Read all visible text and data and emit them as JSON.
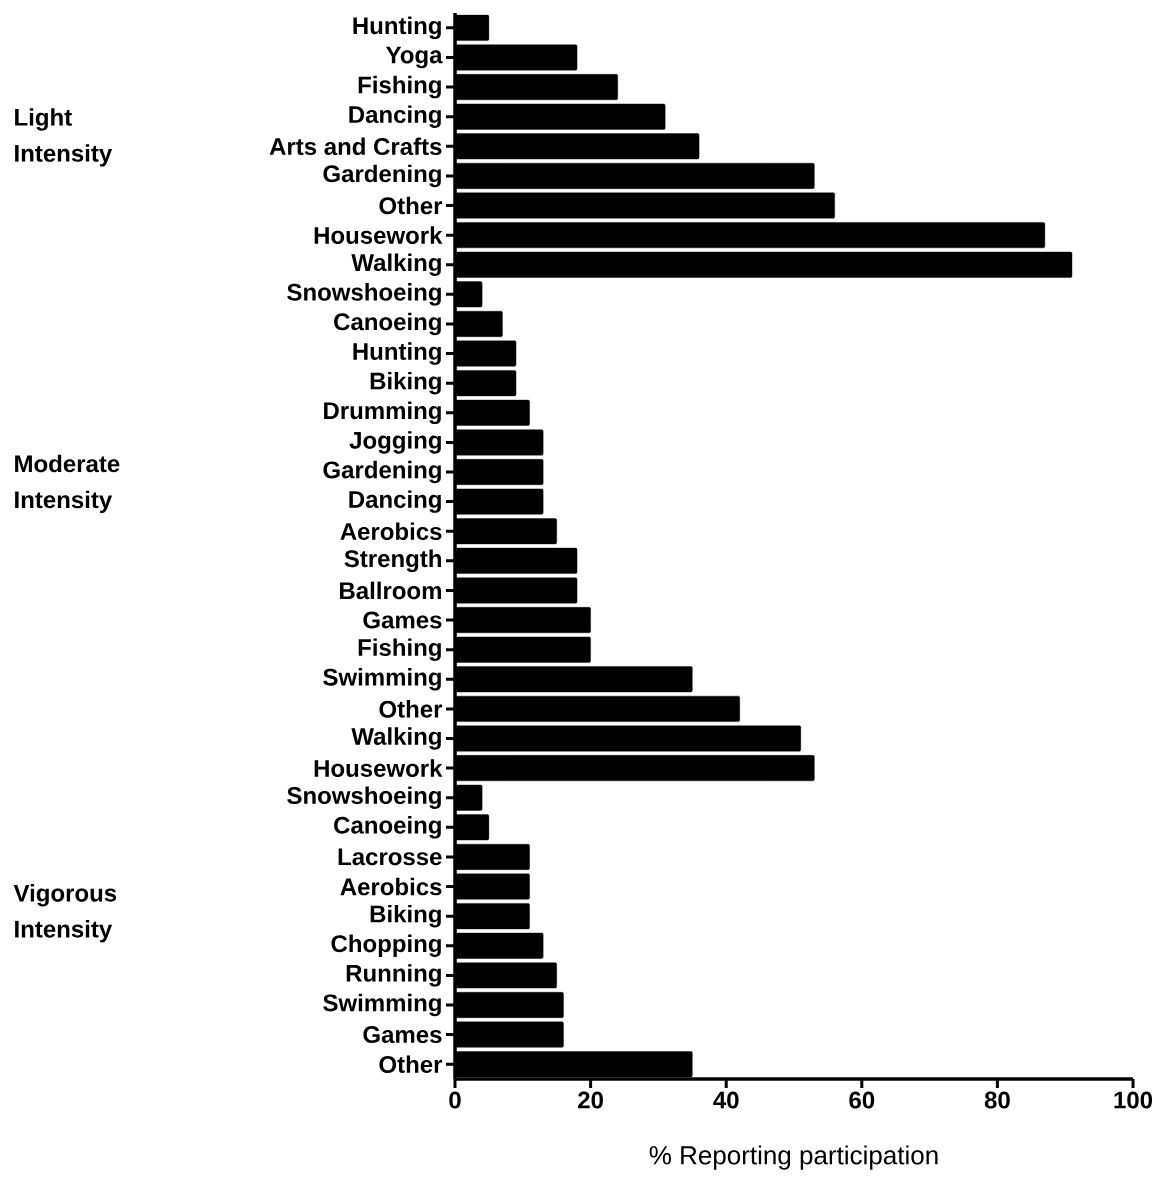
{
  "chart_data": {
    "type": "bar",
    "orientation": "horizontal",
    "xlabel": "% Reporting participation",
    "categories": [
      "Hunting",
      "Yoga",
      "Fishing",
      "Dancing",
      "Arts and Crafts",
      "Gardening",
      "Other",
      "Housework",
      "Walking",
      "Snowshoeing",
      "Canoeing",
      "Hunting",
      "Biking",
      "Drumming",
      "Jogging",
      "Gardening",
      "Dancing",
      "Aerobics",
      "Strength",
      "Ballroom",
      "Games",
      "Fishing",
      "Swimming",
      "Other",
      "Walking",
      "Housework",
      "Snowshoeing",
      "Canoeing",
      "Lacrosse",
      "Aerobics",
      "Biking",
      "Chopping",
      "Running",
      "Swimming",
      "Games",
      "Other"
    ],
    "values": [
      5,
      18,
      24,
      31,
      36,
      53,
      56,
      87,
      91,
      4,
      7,
      9,
      9,
      11,
      13,
      13,
      13,
      15,
      18,
      18,
      20,
      20,
      35,
      42,
      51,
      53,
      4,
      5,
      11,
      11,
      11,
      13,
      15,
      16,
      16,
      35
    ],
    "color": "#000000",
    "xlim": [
      0,
      100
    ],
    "xticks": [
      0,
      20,
      40,
      60,
      80,
      100
    ],
    "annotations": [
      "Light Intensity",
      "Moderate Intensity",
      "Vigorous Intensity"
    ]
  }
}
